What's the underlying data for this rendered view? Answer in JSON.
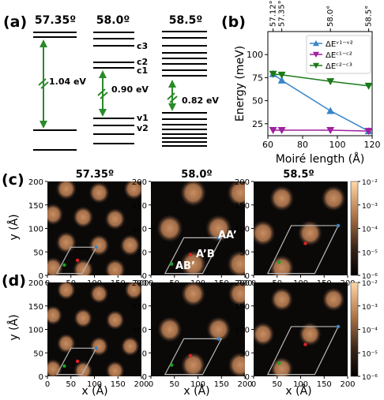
{
  "panel_a": {
    "label": "(a)",
    "columns": [
      {
        "title": "57.35º",
        "gap": "1.04 eV",
        "levels": []
      },
      {
        "title": "58.0º",
        "gap": "0.90 eV",
        "levels": [
          "c3",
          "c2",
          "c1",
          "v1",
          "v2"
        ]
      },
      {
        "title": "58.5º",
        "gap": "0.82 eV",
        "levels": []
      }
    ]
  },
  "panel_b": {
    "label": "(b)",
    "chart_data": {
      "type": "line",
      "xlabel": "Moiré length (Å)",
      "ylabel": "Energy (meV)",
      "xlim": [
        60,
        120
      ],
      "ylim": [
        12,
        125
      ],
      "xticks": [
        60,
        80,
        100,
        120
      ],
      "yticks": [
        25,
        50,
        75,
        100
      ],
      "top_axis_ticks": [
        {
          "x": 63,
          "label": "57.12°"
        },
        {
          "x": 68,
          "label": "57.35°"
        },
        {
          "x": 96,
          "label": "58.0°"
        },
        {
          "x": 118,
          "label": "58.5°"
        }
      ],
      "legend_position": "upper-right",
      "series": [
        {
          "name": "ΔEᵛ¹⁻ᵛ²",
          "color": "#3a86c8",
          "marker": "triangle-up",
          "x": [
            63,
            68,
            96,
            118
          ],
          "y": [
            79,
            72,
            39,
            17
          ]
        },
        {
          "name": "ΔEᶜ¹⁻ᶜ²",
          "color": "#a020a0",
          "marker": "triangle-down",
          "x": [
            63,
            68,
            96,
            118
          ],
          "y": [
            18,
            18,
            18,
            17
          ]
        },
        {
          "name": "ΔEᶜ²⁻ᶜ³",
          "color": "#1a7a1a",
          "marker": "triangle-down",
          "x": [
            63,
            68,
            96,
            118
          ],
          "y": [
            79,
            78,
            71,
            66
          ]
        }
      ]
    }
  },
  "maps": {
    "row_labels": [
      "(c)",
      "(d)"
    ],
    "titles": [
      "57.35º",
      "58.0º",
      "58.5º"
    ],
    "xlabel": "x (Å)",
    "ylabel": "y (Å)",
    "ticks": [
      "0",
      "50",
      "100",
      "150",
      "200"
    ],
    "stacking_labels": [
      "AA’",
      "A’B",
      "AB’"
    ],
    "colorbar_ticks": [
      "10⁻²",
      "10⁻³",
      "10⁻⁴",
      "10⁻⁵",
      "10⁻⁶"
    ],
    "colors": {
      "background": "#0b0908",
      "blob": "#c98f62",
      "point_aa": "#3a86c8",
      "point_ab": "#e02020",
      "point_ba": "#20a020"
    }
  }
}
